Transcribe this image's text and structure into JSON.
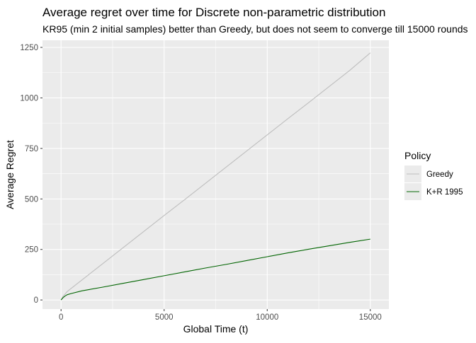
{
  "chart_data": {
    "type": "line",
    "title": "Average regret over time for Discrete non-parametric distribution",
    "subtitle": "KR95 (min 2 initial samples) better than Greedy, but does not seem to converge till 15000 rounds",
    "xlabel": "Global Time (t)",
    "ylabel": "Average Regret",
    "xlim": [
      -900,
      15900
    ],
    "ylim": [
      -45,
      1285
    ],
    "x_ticks": [
      0,
      5000,
      10000,
      15000
    ],
    "x_tick_labels": [
      "0",
      "5000",
      "10000",
      "15000"
    ],
    "y_ticks": [
      0,
      250,
      500,
      750,
      1000,
      1250
    ],
    "y_tick_labels": [
      "0",
      "250",
      "500",
      "750",
      "1000",
      "1250"
    ],
    "grid": true,
    "legend": {
      "title": "Policy",
      "position": "right",
      "entries": [
        "Greedy",
        "K+R 1995"
      ]
    },
    "series": [
      {
        "name": "Greedy",
        "color": "#bebebe",
        "x": [
          0,
          100,
          200,
          300,
          500,
          1000,
          2000,
          3000,
          4000,
          5000,
          6000,
          7000,
          8000,
          9000,
          10000,
          11000,
          12000,
          13000,
          14000,
          15000
        ],
        "y": [
          0,
          18,
          30,
          42,
          58,
          98,
          178,
          258,
          338,
          418,
          497,
          577,
          657,
          737,
          817,
          897,
          976,
          1056,
          1136,
          1223
        ]
      },
      {
        "name": "K+R 1995",
        "color": "#006400",
        "x": [
          0,
          100,
          200,
          300,
          500,
          1000,
          2000,
          3000,
          4000,
          5000,
          6000,
          7000,
          8000,
          9000,
          10000,
          11000,
          12000,
          13000,
          14000,
          15000
        ],
        "y": [
          0,
          12,
          20,
          26,
          32,
          45,
          63,
          82,
          101,
          120,
          139,
          158,
          176,
          195,
          214,
          233,
          251,
          268,
          285,
          301
        ]
      }
    ]
  }
}
